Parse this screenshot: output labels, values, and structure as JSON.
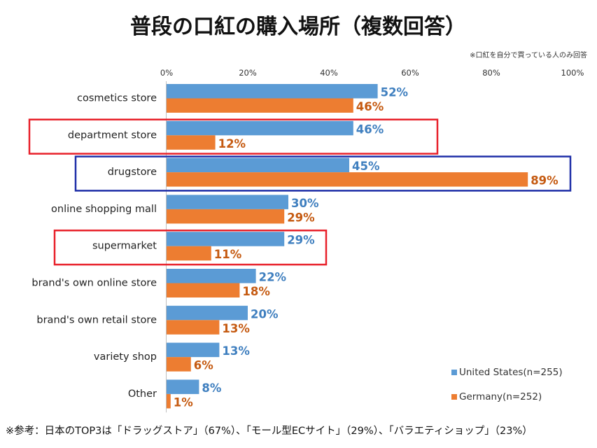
{
  "chart_data": {
    "type": "bar",
    "orientation": "horizontal",
    "title": "普段の口紅の購入場所（複数回答）",
    "note": "※口紅を自分で買っている人のみ回答",
    "categories": [
      "cosmetics store",
      "department store",
      "drugstore",
      "online shopping mall",
      "supermarket",
      "brand's own online store",
      "brand's own retail store",
      "variety shop",
      "Other"
    ],
    "series": [
      {
        "name": "United States(n=255)",
        "color": "#5B9BD5",
        "label_color": "#3F7FBF",
        "values": [
          52,
          46,
          45,
          30,
          29,
          22,
          20,
          13,
          8
        ],
        "labels": [
          "52%",
          "46%",
          "45%",
          "30%",
          "29%",
          "22%",
          "20%",
          "13%",
          "8%"
        ]
      },
      {
        "name": "Germany(n=252)",
        "color": "#ED7D31",
        "label_color": "#C55A11",
        "values": [
          46,
          12,
          89,
          29,
          11,
          18,
          13,
          6,
          1
        ],
        "labels": [
          "46%",
          "12%",
          "89%",
          "29%",
          "11%",
          "18%",
          "13%",
          "6%",
          "1%"
        ]
      }
    ],
    "xlim": [
      0,
      100
    ],
    "ticks": [
      "0%",
      "20%",
      "40%",
      "60%",
      "80%",
      "100%"
    ],
    "tick_values": [
      0,
      20,
      40,
      60,
      80,
      100
    ],
    "grid": false,
    "legend": "bottom-right",
    "highlights": [
      {
        "category": "department store",
        "color": "#E8202A"
      },
      {
        "category": "drugstore",
        "color": "#1F2FA8"
      },
      {
        "category": "supermarket",
        "color": "#E8202A"
      }
    ]
  },
  "footnote": "※参考：日本のTOP3は「ドラッグストア」（67%）、「モール型ECサイト」（29%）、「バラエティショップ」（23%）"
}
